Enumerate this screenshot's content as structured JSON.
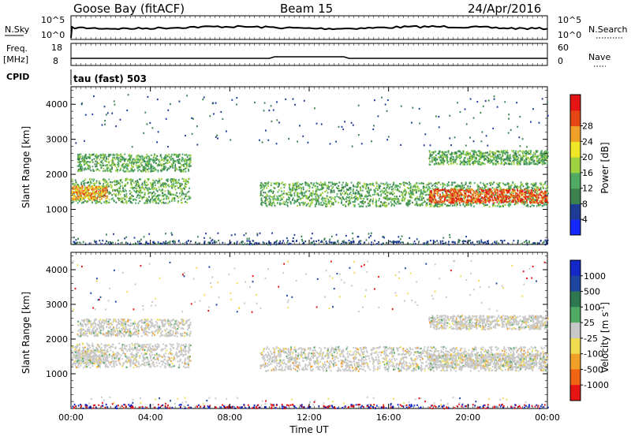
{
  "header": {
    "station": "Goose Bay (fitACF)",
    "beam": "Beam 15",
    "date": "24/Apr/2016"
  },
  "panels": {
    "nsky_label": "N.Sky",
    "nsky_ticks": [
      "10^5",
      "10^0"
    ],
    "nsearch_label": "N.Search",
    "nsearch_ticks": [
      "10^5",
      "10^0"
    ],
    "freq_label": "Freq.",
    "freq_unit": "[MHz]",
    "freq_ticks": [
      "18",
      "8"
    ],
    "nave_label": "Nave",
    "nave_ticks": [
      "60",
      "0"
    ],
    "cpid_label": "CPID",
    "cpid_text": "tau (fast) 503"
  },
  "chart_data": [
    {
      "type": "heatmap",
      "name": "power",
      "ylabel": "Slant Range [km]",
      "yticks": [
        "1000",
        "2000",
        "3000",
        "4000"
      ],
      "ylim": [
        0,
        4500
      ],
      "xlim": [
        0,
        24
      ],
      "colorbar": {
        "label": "Power [dB]",
        "ticks": [
          "4",
          "8",
          "12",
          "16",
          "20",
          "24",
          "28"
        ],
        "colors": [
          "#1428ff",
          "#1e3c96",
          "#3c8250",
          "#50aa64",
          "#a0d240",
          "#f0e628",
          "#f0a028",
          "#e64614",
          "#e61414"
        ]
      },
      "regions": [
        {
          "from": 0.0,
          "to": 6.0,
          "r0": 1200,
          "r1": 1900,
          "level": 12
        },
        {
          "from": 0.3,
          "to": 6.0,
          "r0": 2100,
          "r1": 2600,
          "level": 12
        },
        {
          "from": 0.0,
          "to": 1.8,
          "r0": 1300,
          "r1": 1700,
          "level": 24
        },
        {
          "from": 9.5,
          "to": 24.0,
          "r0": 1100,
          "r1": 1800,
          "level": 12
        },
        {
          "from": 18.0,
          "to": 24.0,
          "r0": 1200,
          "r1": 1600,
          "level": 28
        },
        {
          "from": 18.0,
          "to": 24.0,
          "r0": 2300,
          "r1": 2700,
          "level": 12
        }
      ]
    },
    {
      "type": "heatmap",
      "name": "velocity",
      "ylabel": "Slant Range [km]",
      "yticks": [
        "1000",
        "2000",
        "3000",
        "4000"
      ],
      "ylim": [
        0,
        4500
      ],
      "xlim": [
        0,
        24
      ],
      "xlabel": "Time UT",
      "xticks": [
        "00:00",
        "04:00",
        "08:00",
        "12:00",
        "16:00",
        "20:00",
        "00:00"
      ],
      "colorbar": {
        "label": "Velocity [m s",
        "label_sup": "-1",
        "label_end": "]",
        "ticks": [
          "1000",
          "500",
          "100",
          "25",
          "-25",
          "-100",
          "-500",
          "-1000"
        ],
        "colors": [
          "#1428c8",
          "#1e46a0",
          "#2d7850",
          "#50aa64",
          "#c8c8c8",
          "#f0dc50",
          "#f0a028",
          "#f06414",
          "#e61414"
        ]
      }
    }
  ]
}
